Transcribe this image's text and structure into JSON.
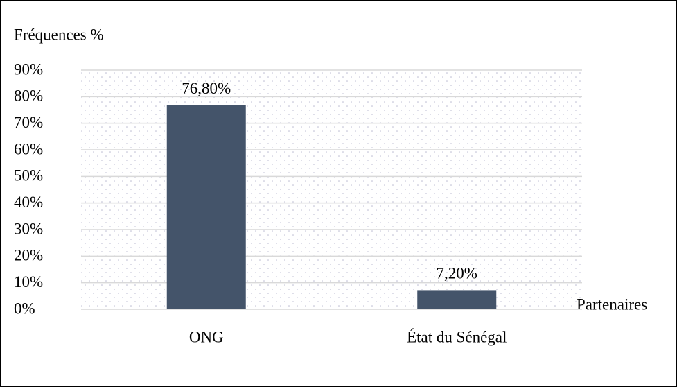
{
  "chart_data": {
    "type": "bar",
    "y_label": "Fréquences %",
    "x_label": "Partenaires",
    "categories": [
      "ONG",
      "État du Sénégal"
    ],
    "values": [
      76.8,
      7.2
    ],
    "value_labels": [
      "76,80%",
      "7,20%"
    ],
    "color": "#44546a",
    "ylim": [
      0,
      90
    ],
    "yticks": [
      {
        "value": 0,
        "label": "0%"
      },
      {
        "value": 10,
        "label": "10%"
      },
      {
        "value": 20,
        "label": "20%"
      },
      {
        "value": 30,
        "label": "30%"
      },
      {
        "value": 40,
        "label": "40%"
      },
      {
        "value": 50,
        "label": "50%"
      },
      {
        "value": 60,
        "label": "60%"
      },
      {
        "value": 70,
        "label": "70%"
      },
      {
        "value": 80,
        "label": "80%"
      },
      {
        "value": 90,
        "label": "90%"
      }
    ],
    "grid": true
  }
}
